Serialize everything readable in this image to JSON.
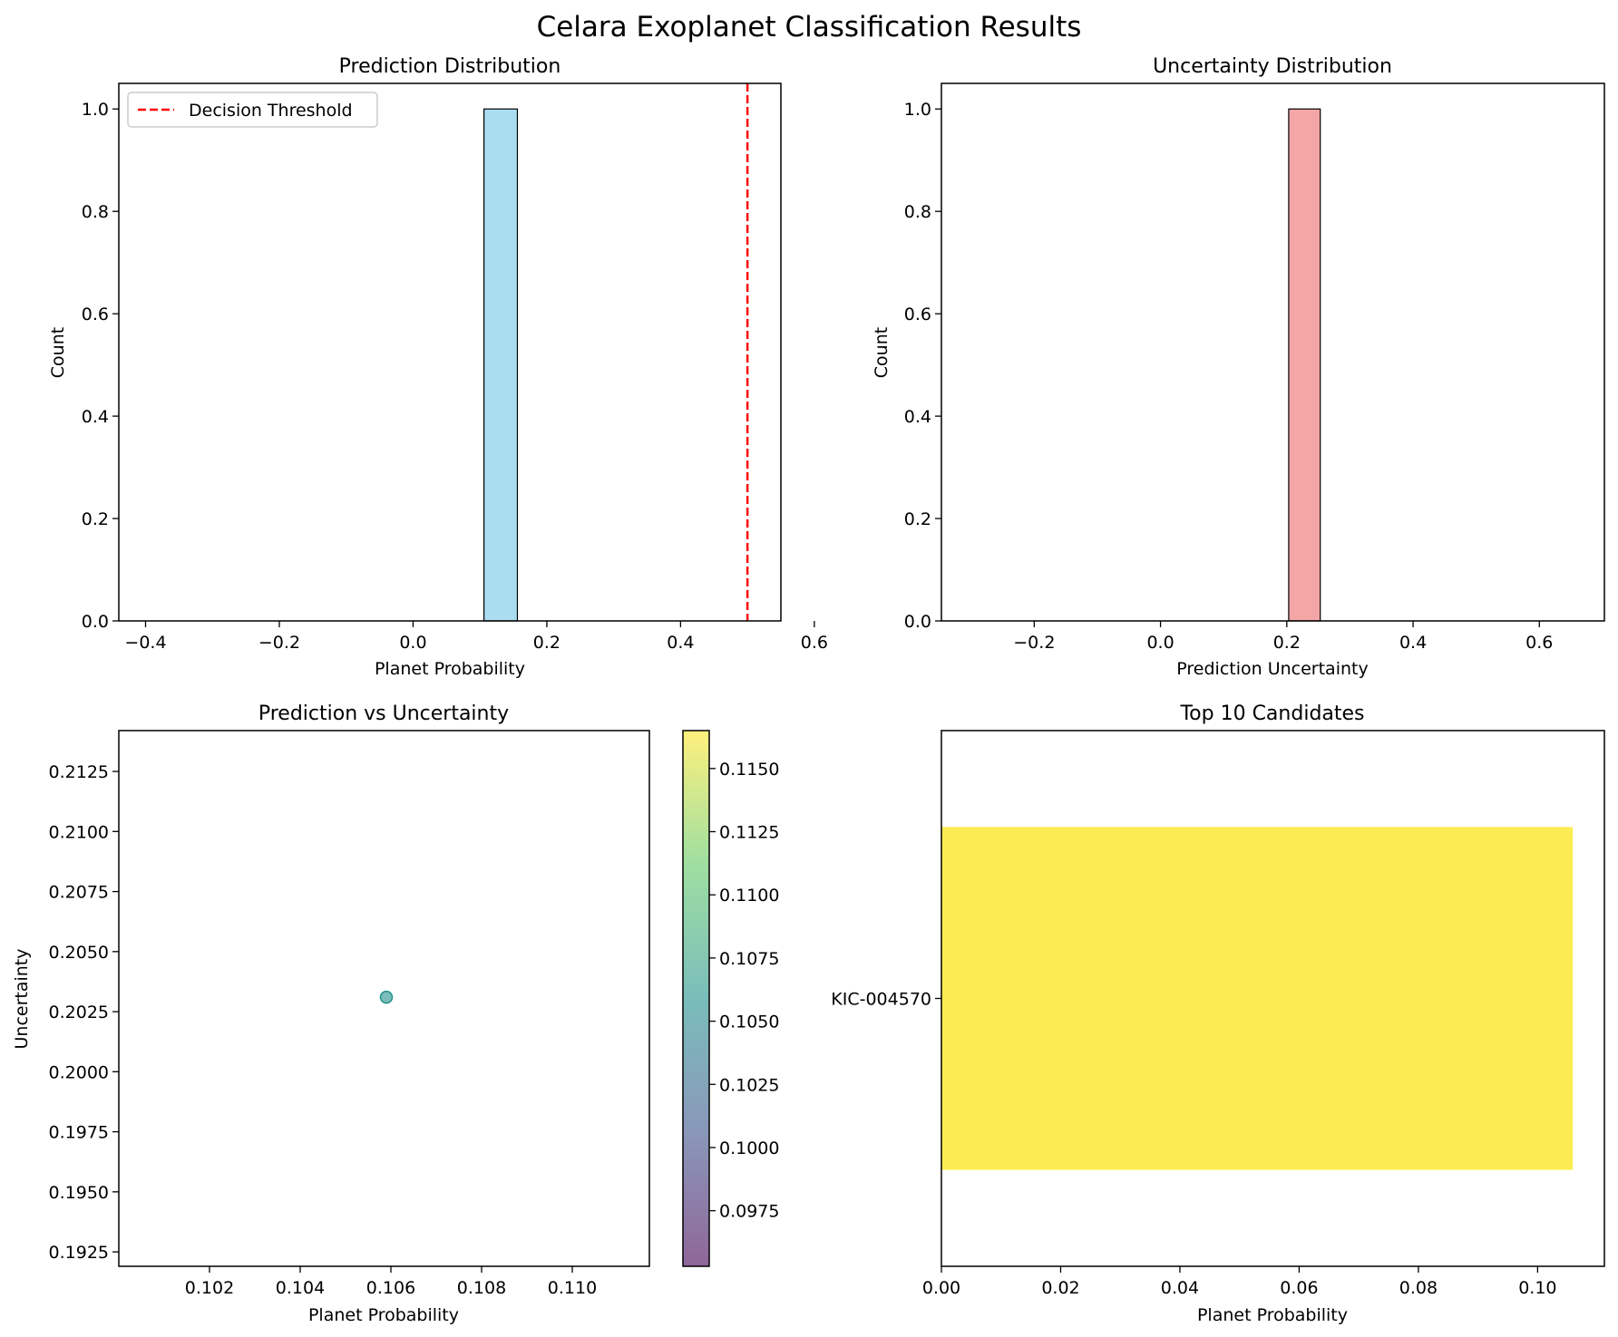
{
  "suptitle": "Celara Exoplanet Classification Results",
  "chart_data": [
    {
      "id": "pred",
      "type": "bar",
      "subtype": "histogram",
      "title": "Prediction Distribution",
      "xlabel": "Planet Probability",
      "ylabel": "Count",
      "xlim": [
        -0.44,
        0.55
      ],
      "ylim": [
        0,
        1.05
      ],
      "xticks": [
        -0.4,
        -0.2,
        0.0,
        0.2,
        0.4,
        0.6
      ],
      "xtick_labels": [
        "−0.4",
        "−0.2",
        "0.0",
        "0.2",
        "0.4",
        "0.6"
      ],
      "yticks": [
        0.0,
        0.2,
        0.4,
        0.6,
        0.8,
        1.0
      ],
      "ytick_labels": [
        "0.0",
        "0.2",
        "0.4",
        "0.6",
        "0.8",
        "1.0"
      ],
      "bins": [
        {
          "x0": 0.106,
          "x1": 0.156,
          "count": 1
        }
      ],
      "bar_color": "#87ceeb",
      "vline": {
        "x": 0.5,
        "label": "Decision Threshold",
        "color": "#ff0000"
      },
      "legend": "top-left"
    },
    {
      "id": "unc",
      "type": "bar",
      "subtype": "histogram",
      "title": "Uncertainty Distribution",
      "xlabel": "Prediction Uncertainty",
      "ylabel": "Count",
      "xlim": [
        -0.347,
        0.703
      ],
      "ylim": [
        0,
        1.05
      ],
      "xticks": [
        -0.2,
        0.0,
        0.2,
        0.4,
        0.6
      ],
      "xtick_labels": [
        "−0.2",
        "0.0",
        "0.2",
        "0.4",
        "0.6"
      ],
      "yticks": [
        0.0,
        0.2,
        0.4,
        0.6,
        0.8,
        1.0
      ],
      "ytick_labels": [
        "0.0",
        "0.2",
        "0.4",
        "0.6",
        "0.8",
        "1.0"
      ],
      "bins": [
        {
          "x0": 0.203,
          "x1": 0.253,
          "count": 1
        }
      ],
      "bar_color": "#f08080"
    },
    {
      "id": "scatter",
      "type": "scatter",
      "title": "Prediction vs Uncertainty",
      "xlabel": "Planet Probability",
      "ylabel": "Uncertainty",
      "xlim": [
        0.1,
        0.1117
      ],
      "ylim": [
        0.1919,
        0.2142
      ],
      "xticks": [
        0.102,
        0.104,
        0.106,
        0.108,
        0.11
      ],
      "xtick_labels": [
        "0.102",
        "0.104",
        "0.106",
        "0.108",
        "0.110"
      ],
      "yticks": [
        0.1925,
        0.195,
        0.1975,
        0.2,
        0.2025,
        0.205,
        0.2075,
        0.21,
        0.2125
      ],
      "ytick_labels": [
        "0.1925",
        "0.1950",
        "0.1975",
        "0.2000",
        "0.2025",
        "0.2050",
        "0.2075",
        "0.2100",
        "0.2125"
      ],
      "points": [
        {
          "x": 0.1059,
          "y": 0.2031,
          "c": 0.1059
        }
      ],
      "colorbar": {
        "cmap": "viridis",
        "range": [
          0.0953,
          0.1165
        ],
        "ticks": [
          0.0975,
          0.1,
          0.1025,
          0.105,
          0.1075,
          0.11,
          0.1125,
          0.115
        ],
        "tick_labels": [
          "0.0975",
          "0.1000",
          "0.1025",
          "0.1050",
          "0.1075",
          "0.1100",
          "0.1125",
          "0.1150"
        ]
      }
    },
    {
      "id": "top",
      "type": "bar",
      "orientation": "horizontal",
      "title": "Top 10 Candidates",
      "xlabel": "Planet Probability",
      "ylabel": "",
      "xlim": [
        0,
        0.1112
      ],
      "xticks": [
        0.0,
        0.02,
        0.04,
        0.06,
        0.08,
        0.1
      ],
      "xtick_labels": [
        "0.00",
        "0.02",
        "0.04",
        "0.06",
        "0.08",
        "0.10"
      ],
      "categories": [
        "KIC-004570"
      ],
      "values": [
        0.1059
      ],
      "bar_color": "#fde725"
    }
  ]
}
